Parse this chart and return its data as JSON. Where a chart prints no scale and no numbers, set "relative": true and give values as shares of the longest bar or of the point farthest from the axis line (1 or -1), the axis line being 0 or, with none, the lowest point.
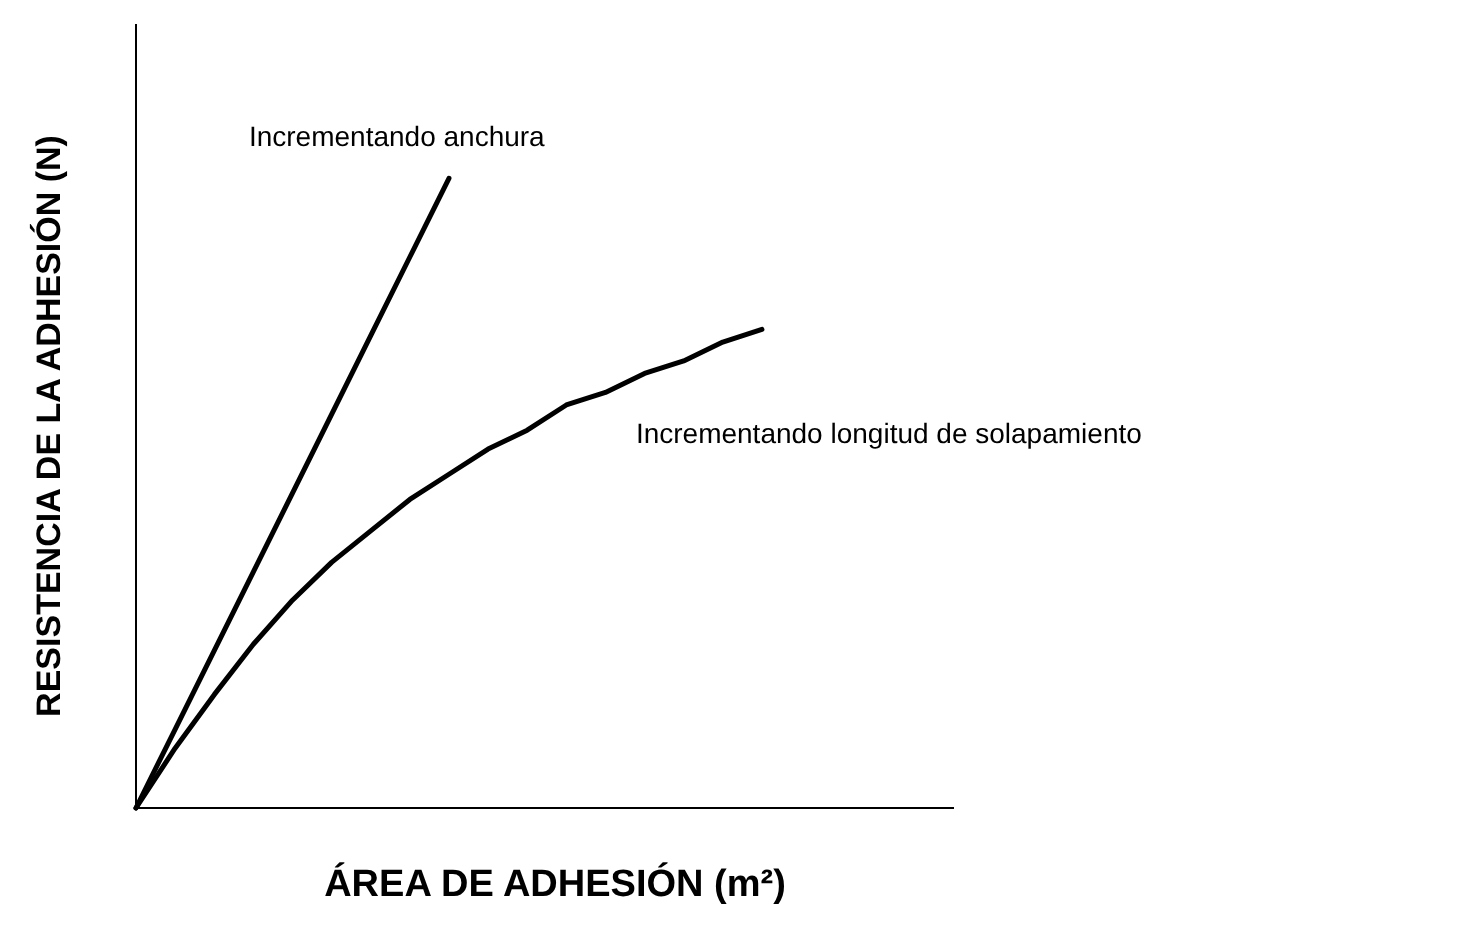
{
  "chart_data": {
    "type": "line",
    "relative": true,
    "xlabel": "ÁREA DE ADHESIÓN (m²)",
    "ylabel": "RESISTENCIA DE LA ADHESIÓN (N)",
    "categories": [
      null,
      null,
      null,
      null,
      null,
      null,
      null,
      null,
      null,
      null,
      null,
      null,
      null,
      null,
      null,
      null,
      null
    ],
    "series": [
      {
        "name": "Incrementando anchura",
        "color": "#000000",
        "values": [
          0,
          0.125,
          0.25,
          0.375,
          0.5,
          0.625,
          0.75,
          0.875,
          1,
          null,
          null,
          null,
          null,
          null,
          null,
          null,
          null
        ]
      },
      {
        "name": "Incrementando longitud de solapamiento",
        "color": "#000000",
        "values": [
          0,
          0.095,
          0.18,
          0.26,
          0.33,
          0.39,
          0.44,
          0.49,
          0.53,
          0.57,
          0.6,
          0.64,
          0.66,
          0.69,
          0.71,
          0.74,
          0.76
        ]
      }
    ]
  }
}
